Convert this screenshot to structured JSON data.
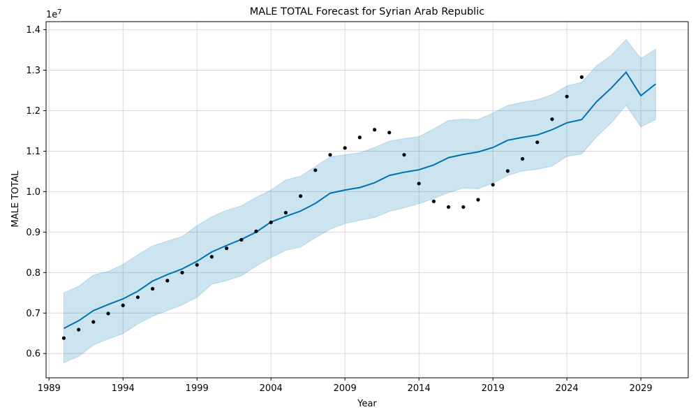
{
  "chart_data": {
    "type": "line",
    "title": "MALE TOTAL Forecast for Syrian Arab Republic",
    "xlabel": "Year",
    "ylabel": "MALE TOTAL",
    "y_offset_label": "1e7",
    "y_scale_factor": 10000000,
    "xlim": [
      1988.8,
      2032.2
    ],
    "ylim": [
      5400000,
      14200000
    ],
    "x_ticks": [
      1989,
      1994,
      1999,
      2004,
      2009,
      2014,
      2019,
      2024,
      2029
    ],
    "x_tick_labels": [
      "1989",
      "1994",
      "1999",
      "2004",
      "2009",
      "2014",
      "2019",
      "2024",
      "2029"
    ],
    "y_ticks": [
      6000000,
      7000000,
      8000000,
      9000000,
      10000000,
      11000000,
      12000000,
      13000000,
      14000000
    ],
    "y_tick_labels": [
      "0.6",
      "0.7",
      "0.8",
      "0.9",
      "1.0",
      "1.1",
      "1.2",
      "1.3",
      "1.4"
    ],
    "grid": true,
    "colors": {
      "forecast_line": "#0072B2",
      "interval_fill": "#0072B2",
      "observed_points": "#000000",
      "grid": "#d9d9d9"
    },
    "forecast": {
      "x": [
        1990,
        1991,
        1992,
        1993,
        1994,
        1995,
        1996,
        1997,
        1998,
        1999,
        2000,
        2001,
        2002,
        2003,
        2004,
        2005,
        2006,
        2007,
        2008,
        2009,
        2010,
        2011,
        2012,
        2013,
        2014,
        2015,
        2016,
        2017,
        2018,
        2019,
        2020,
        2021,
        2022,
        2023,
        2024,
        2025,
        2026,
        2027,
        2028,
        2029,
        2030
      ],
      "yhat": [
        6620000,
        6810000,
        7060000,
        7210000,
        7350000,
        7540000,
        7790000,
        7950000,
        8090000,
        8280000,
        8510000,
        8670000,
        8820000,
        9000000,
        9250000,
        9390000,
        9520000,
        9710000,
        9960000,
        10040000,
        10100000,
        10220000,
        10400000,
        10480000,
        10540000,
        10660000,
        10840000,
        10920000,
        10980000,
        11090000,
        11270000,
        11340000,
        11400000,
        11530000,
        11700000,
        11780000,
        12220000,
        12560000,
        12950000,
        12370000,
        12660000
      ],
      "yhat_upper": [
        7500000,
        7660000,
        7940000,
        8030000,
        8200000,
        8440000,
        8660000,
        8780000,
        8890000,
        9160000,
        9380000,
        9540000,
        9650000,
        9860000,
        10040000,
        10290000,
        10380000,
        10620000,
        10860000,
        10910000,
        10960000,
        11090000,
        11250000,
        11310000,
        11360000,
        11550000,
        11760000,
        11790000,
        11780000,
        11940000,
        12130000,
        12210000,
        12270000,
        12400000,
        12610000,
        12700000,
        13110000,
        13370000,
        13760000,
        13290000,
        13520000
      ],
      "yhat_lower": [
        5770000,
        5930000,
        6210000,
        6360000,
        6490000,
        6730000,
        6920000,
        7060000,
        7200000,
        7390000,
        7710000,
        7800000,
        7920000,
        8160000,
        8370000,
        8550000,
        8630000,
        8860000,
        9070000,
        9210000,
        9290000,
        9360000,
        9510000,
        9600000,
        9700000,
        9830000,
        9970000,
        10090000,
        10070000,
        10210000,
        10400000,
        10510000,
        10550000,
        10630000,
        10870000,
        10930000,
        11350000,
        11700000,
        12130000,
        11600000,
        11780000
      ]
    },
    "observed": {
      "x": [
        1990,
        1991,
        1992,
        1993,
        1994,
        1995,
        1996,
        1997,
        1998,
        1999,
        2000,
        2001,
        2002,
        2003,
        2004,
        2005,
        2006,
        2007,
        2008,
        2009,
        2010,
        2011,
        2012,
        2013,
        2014,
        2015,
        2016,
        2017,
        2018,
        2019,
        2020,
        2021,
        2022,
        2023,
        2024,
        2025
      ],
      "y": [
        6380000,
        6590000,
        6780000,
        6990000,
        7190000,
        7390000,
        7600000,
        7800000,
        8000000,
        8190000,
        8390000,
        8600000,
        8810000,
        9020000,
        9240000,
        9480000,
        9890000,
        10530000,
        10910000,
        11080000,
        11340000,
        11530000,
        11460000,
        10910000,
        10200000,
        9760000,
        9620000,
        9620000,
        9800000,
        10170000,
        10510000,
        10810000,
        11220000,
        11790000,
        12350000,
        12830000
      ]
    }
  }
}
